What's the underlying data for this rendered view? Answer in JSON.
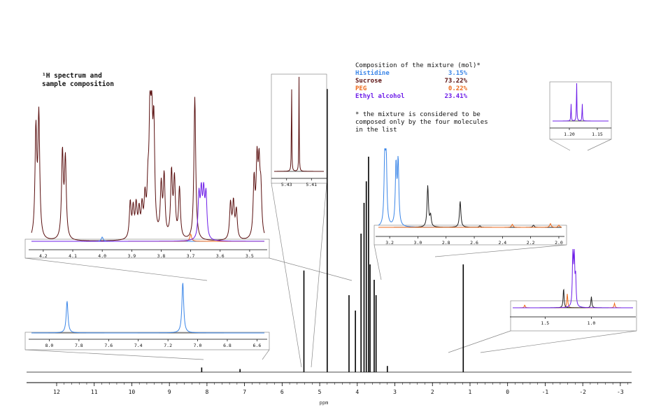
{
  "chart_data": {
    "type": "line",
    "title": "¹H spectrum and sample composition",
    "xlabel": "ppm",
    "ylabel": "",
    "xlim": [
      12.8,
      -3.3
    ],
    "x_reversed": true,
    "grid": false,
    "main_ticks": [
      "12",
      "11",
      "10",
      "9",
      "8",
      "7",
      "6",
      "5",
      "4",
      "3",
      "2",
      "1",
      "0",
      "-1",
      "-2",
      "-3"
    ],
    "main_peaks": [
      {
        "x": 8.14,
        "h": 0.015
      },
      {
        "x": 7.12,
        "h": 0.01
      },
      {
        "x": 5.42,
        "h": 0.33
      },
      {
        "x": 4.8,
        "h": 0.92
      },
      {
        "x": 4.22,
        "h": 0.25
      },
      {
        "x": 4.05,
        "h": 0.2
      },
      {
        "x": 3.9,
        "h": 0.45
      },
      {
        "x": 3.82,
        "h": 0.55
      },
      {
        "x": 3.76,
        "h": 0.62
      },
      {
        "x": 3.7,
        "h": 0.7
      },
      {
        "x": 3.66,
        "h": 0.35
      },
      {
        "x": 3.55,
        "h": 0.3
      },
      {
        "x": 3.5,
        "h": 0.25
      },
      {
        "x": 3.2,
        "h": 0.02
      },
      {
        "x": 1.18,
        "h": 0.35
      }
    ],
    "composition": {
      "header": "Composition of the mixture (mol)*",
      "items": [
        {
          "name": "Histidine",
          "value": "3.15%",
          "color": "#3b86e8"
        },
        {
          "name": "Sucrose",
          "value": "73.22%",
          "color": "#5a1010"
        },
        {
          "name": "PEG",
          "value": "0.22%",
          "color": "#ee6a1c"
        },
        {
          "name": "Ethyl alcohol",
          "value": "23.41%",
          "color": "#6e1ee8"
        }
      ],
      "note": [
        "* the mixture is considered to be",
        "composed only by the four molecules",
        "in the list"
      ]
    },
    "insets": [
      {
        "id": "sucrose-region",
        "ticks": [
          "4.2",
          "4.1",
          "4.0",
          "3.9",
          "3.8",
          "3.7",
          "3.6",
          "3.5"
        ],
        "xlim": [
          4.24,
          3.45
        ],
        "peaks": [
          {
            "x": 4.225,
            "h": 0.75,
            "color": "#5a1010"
          },
          {
            "x": 4.215,
            "h": 0.85,
            "color": "#5a1010"
          },
          {
            "x": 4.135,
            "h": 0.6,
            "color": "#5a1010"
          },
          {
            "x": 4.125,
            "h": 0.55,
            "color": "#5a1010"
          },
          {
            "x": 4.0,
            "h": 0.03,
            "color": "#3b86e8"
          },
          {
            "x": 3.905,
            "h": 0.25,
            "color": "#5a1010"
          },
          {
            "x": 3.895,
            "h": 0.2,
            "color": "#5a1010"
          },
          {
            "x": 3.885,
            "h": 0.22,
            "color": "#5a1010"
          },
          {
            "x": 3.875,
            "h": 0.18,
            "color": "#5a1010"
          },
          {
            "x": 3.865,
            "h": 0.2,
            "color": "#5a1010"
          },
          {
            "x": 3.855,
            "h": 0.25,
            "color": "#5a1010"
          },
          {
            "x": 3.845,
            "h": 0.28,
            "color": "#5a1010"
          },
          {
            "x": 3.838,
            "h": 0.8,
            "color": "#5a1010"
          },
          {
            "x": 3.832,
            "h": 0.68,
            "color": "#5a1010"
          },
          {
            "x": 3.825,
            "h": 0.72,
            "color": "#5a1010"
          },
          {
            "x": 3.8,
            "h": 0.35,
            "color": "#5a1010"
          },
          {
            "x": 3.79,
            "h": 0.42,
            "color": "#5a1010"
          },
          {
            "x": 3.765,
            "h": 0.45,
            "color": "#5a1010"
          },
          {
            "x": 3.755,
            "h": 0.4,
            "color": "#5a1010"
          },
          {
            "x": 3.738,
            "h": 0.35,
            "color": "#5a1010"
          },
          {
            "x": 3.7,
            "h": 0.05,
            "color": "#ee6a1c"
          },
          {
            "x": 3.686,
            "h": 1.0,
            "color": "#5a1010"
          },
          {
            "x": 3.672,
            "h": 0.3,
            "color": "#6e1ee8"
          },
          {
            "x": 3.664,
            "h": 0.3,
            "color": "#6e1ee8"
          },
          {
            "x": 3.656,
            "h": 0.3,
            "color": "#6e1ee8"
          },
          {
            "x": 3.648,
            "h": 0.3,
            "color": "#6e1ee8"
          },
          {
            "x": 3.565,
            "h": 0.25,
            "color": "#5a1010"
          },
          {
            "x": 3.555,
            "h": 0.25,
            "color": "#5a1010"
          },
          {
            "x": 3.545,
            "h": 0.2,
            "color": "#5a1010"
          },
          {
            "x": 3.485,
            "h": 0.4,
            "color": "#5a1010"
          },
          {
            "x": 3.475,
            "h": 0.5,
            "color": "#5a1010"
          },
          {
            "x": 3.468,
            "h": 0.45,
            "color": "#5a1010"
          },
          {
            "x": 3.462,
            "h": 0.3,
            "color": "#5a1010"
          }
        ]
      },
      {
        "id": "anomeric-region",
        "ticks": [
          "5.43",
          "5.41"
        ],
        "xlim": [
          5.44,
          5.4
        ],
        "peaks": [
          {
            "x": 5.426,
            "h": 0.95,
            "color": "#5a1010"
          },
          {
            "x": 5.42,
            "h": 0.9,
            "color": "#5a1010"
          }
        ]
      },
      {
        "id": "histidine-aliphatic-region",
        "ticks": [
          "3.2",
          "3.0",
          "2.8",
          "2.6",
          "2.4",
          "2.2",
          "2.0"
        ],
        "xlim": [
          3.28,
          1.98
        ],
        "peaks": [
          {
            "x": 3.235,
            "h": 0.85,
            "color": "#3b86e8"
          },
          {
            "x": 3.225,
            "h": 0.9,
            "color": "#3b86e8"
          },
          {
            "x": 3.155,
            "h": 0.8,
            "color": "#3b86e8"
          },
          {
            "x": 3.14,
            "h": 0.85,
            "color": "#3b86e8"
          },
          {
            "x": 2.93,
            "h": 0.55,
            "color": "#222222"
          },
          {
            "x": 2.91,
            "h": 0.15,
            "color": "#222222"
          },
          {
            "x": 2.7,
            "h": 0.35,
            "color": "#222222"
          },
          {
            "x": 2.56,
            "h": 0.02,
            "color": "#222222"
          },
          {
            "x": 2.33,
            "h": 0.04,
            "color": "#ee6a1c"
          },
          {
            "x": 2.18,
            "h": 0.03,
            "color": "#222222"
          },
          {
            "x": 2.06,
            "h": 0.05,
            "color": "#ee6a1c"
          },
          {
            "x": 2.0,
            "h": 0.03,
            "color": "#ee6a1c"
          }
        ]
      },
      {
        "id": "histidine-aromatic-region",
        "ticks": [
          "8.0",
          "7.8",
          "7.6",
          "7.4",
          "7.2",
          "7.0",
          "6.8",
          "6.6"
        ],
        "xlim": [
          8.12,
          6.55
        ],
        "peaks": [
          {
            "x": 7.88,
            "h": 0.6,
            "color": "#3b86e8"
          },
          {
            "x": 7.1,
            "h": 0.95,
            "color": "#3b86e8"
          }
        ]
      },
      {
        "id": "ethanol-methyl-region",
        "ticks": [
          "1.5",
          "1.0"
        ],
        "xlim": [
          1.85,
          0.55
        ],
        "peaks": [
          {
            "x": 1.72,
            "h": 0.05,
            "color": "#ee6a1c"
          },
          {
            "x": 1.3,
            "h": 0.35,
            "color": "#222222"
          },
          {
            "x": 1.26,
            "h": 0.25,
            "color": "#ee6a1c"
          },
          {
            "x": 1.2,
            "h": 1.0,
            "color": "#6e1ee8"
          },
          {
            "x": 1.185,
            "h": 0.95,
            "color": "#6e1ee8"
          },
          {
            "x": 1.17,
            "h": 0.5,
            "color": "#6e1ee8"
          },
          {
            "x": 1.0,
            "h": 0.2,
            "color": "#222222"
          },
          {
            "x": 0.75,
            "h": 0.08,
            "color": "#ee6a1c"
          }
        ]
      },
      {
        "id": "ethanol-triplet-zoom",
        "ticks": [
          "1.20",
          "1.15"
        ],
        "xlim": [
          1.23,
          1.13
        ],
        "peaks": [
          {
            "x": 1.197,
            "h": 0.45,
            "color": "#6e1ee8"
          },
          {
            "x": 1.187,
            "h": 1.0,
            "color": "#6e1ee8"
          },
          {
            "x": 1.177,
            "h": 0.45,
            "color": "#6e1ee8"
          }
        ]
      }
    ]
  }
}
